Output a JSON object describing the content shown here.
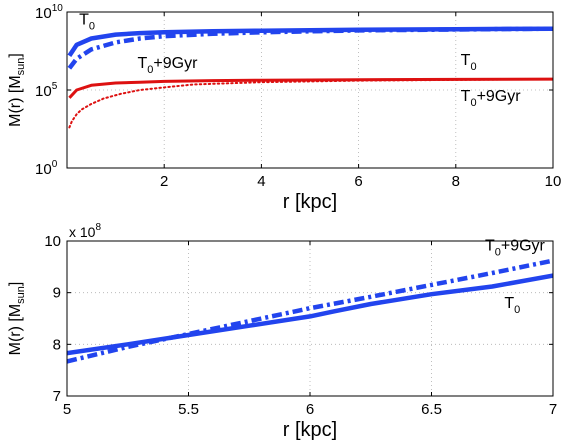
{
  "chart_data": [
    {
      "type": "line",
      "xlabel": "r [kpc]",
      "ylabel": "M(r) [M",
      "ylabel_sub": "sun",
      "ylabel_close": "]",
      "xlim": [
        0,
        10
      ],
      "ylim_log10": [
        0,
        10
      ],
      "yscale": "log",
      "grid": true,
      "x_ticks": [
        2,
        4,
        6,
        8,
        10
      ],
      "x_tick_labels": [
        "2",
        "4",
        "6",
        "8",
        "10"
      ],
      "y_ticks_log10": [
        0,
        5,
        10
      ],
      "y_tick_base": "10",
      "y_tick_exps": [
        "0",
        "5",
        "10"
      ],
      "annotations": [
        {
          "base": "T",
          "sub": "0",
          "rest": "",
          "x": 0.25,
          "y_log10": 9.2
        },
        {
          "base": "T",
          "sub": "0",
          "rest": "+9Gyr",
          "x": 1.45,
          "y_log10": 6.4
        },
        {
          "base": "T",
          "sub": "0",
          "rest": "",
          "x": 8.1,
          "y_log10": 6.6
        },
        {
          "base": "T",
          "sub": "0",
          "rest": "+9Gyr",
          "x": 8.1,
          "y_log10": 4.3
        }
      ],
      "series": [
        {
          "color": "#2244ee",
          "style": "solid",
          "width": 4.5,
          "x": [
            0.05,
            0.2,
            0.5,
            1,
            1.5,
            2,
            3,
            4,
            6,
            8,
            10
          ],
          "y_log10": [
            7.2,
            7.9,
            8.3,
            8.55,
            8.65,
            8.7,
            8.76,
            8.8,
            8.86,
            8.9,
            8.93
          ]
        },
        {
          "color": "#2244ee",
          "style": "dashdot",
          "width": 4.5,
          "x": [
            0.05,
            0.2,
            0.5,
            1,
            1.5,
            2,
            3,
            4,
            6,
            8,
            10
          ],
          "y_log10": [
            6.4,
            7.0,
            7.6,
            8.05,
            8.3,
            8.45,
            8.6,
            8.7,
            8.82,
            8.88,
            8.93
          ]
        },
        {
          "color": "#dd1111",
          "style": "solid",
          "width": 3,
          "x": [
            0.05,
            0.2,
            0.5,
            1,
            1.5,
            2,
            3,
            4,
            6,
            8,
            10
          ],
          "y_log10": [
            4.5,
            5.0,
            5.3,
            5.45,
            5.5,
            5.55,
            5.6,
            5.63,
            5.66,
            5.68,
            5.7
          ]
        },
        {
          "color": "#dd1111",
          "style": "dotted",
          "width": 2,
          "x": [
            0.05,
            0.1,
            0.2,
            0.3,
            0.5,
            0.75,
            1.1,
            1.5,
            2.1,
            2.6,
            3,
            4,
            6,
            8,
            10
          ],
          "y_log10": [
            2.6,
            3.0,
            3.45,
            3.75,
            4.1,
            4.45,
            4.75,
            5.0,
            5.2,
            5.35,
            5.4,
            5.5,
            5.6,
            5.65,
            5.7
          ]
        }
      ]
    },
    {
      "type": "line",
      "xlabel": "r [kpc]",
      "ylabel": "M(r) [M",
      "ylabel_sub": "sun",
      "ylabel_close": "]",
      "xlim": [
        5,
        7
      ],
      "ylim": [
        7,
        10
      ],
      "grid": true,
      "x_ticks": [
        5,
        5.5,
        6,
        6.5,
        7
      ],
      "x_tick_labels": [
        "5",
        "5.5",
        "6",
        "6.5",
        "7"
      ],
      "y_ticks": [
        7,
        8,
        9,
        10
      ],
      "y_tick_labels": [
        "7",
        "8",
        "9",
        "10"
      ],
      "y_multiplier_base": "x 10",
      "y_multiplier_exp": "8",
      "annotations": [
        {
          "base": "T",
          "sub": "0",
          "rest": "+9Gyr",
          "x": 6.72,
          "y": 9.82
        },
        {
          "base": "T",
          "sub": "0",
          "rest": "",
          "x": 6.8,
          "y": 8.7
        }
      ],
      "series": [
        {
          "color": "#2244ee",
          "style": "solid",
          "width": 4.5,
          "x": [
            5,
            5.25,
            5.5,
            5.75,
            6,
            6.1,
            6.25,
            6.5,
            6.75,
            7
          ],
          "y": [
            7.83,
            8.0,
            8.18,
            8.36,
            8.54,
            8.64,
            8.78,
            8.97,
            9.12,
            9.33
          ]
        },
        {
          "color": "#2244ee",
          "style": "dashdot",
          "width": 4.5,
          "x": [
            5,
            5.25,
            5.5,
            5.75,
            6,
            6.25,
            6.5,
            6.75,
            7
          ],
          "y": [
            7.67,
            7.95,
            8.2,
            8.45,
            8.7,
            8.92,
            9.15,
            9.38,
            9.62
          ]
        }
      ]
    }
  ]
}
